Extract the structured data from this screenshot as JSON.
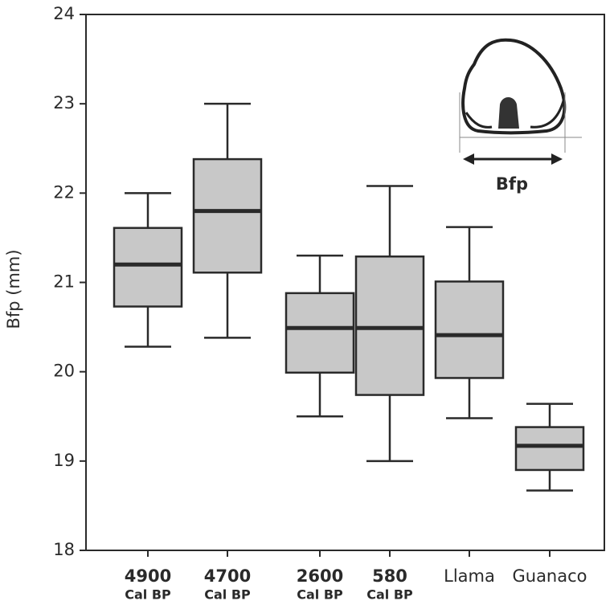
{
  "chart_data": {
    "type": "box",
    "y_label": "Bfp (mm)",
    "annotation": "Bfp",
    "categories": [
      [
        "4900",
        "Cal BP"
      ],
      [
        "4700",
        "Cal BP"
      ],
      [
        "2600",
        "Cal BP"
      ],
      [
        "580",
        "Cal BP"
      ],
      [
        "Llama"
      ],
      [
        "Guanaco"
      ]
    ],
    "boxes": [
      {
        "whislo": 20.28,
        "q1": 20.73,
        "med": 21.2,
        "q3": 21.61,
        "whishi": 22.0
      },
      {
        "whislo": 20.38,
        "q1": 21.11,
        "med": 21.8,
        "q3": 22.38,
        "whishi": 23.0
      },
      {
        "whislo": 19.5,
        "q1": 19.99,
        "med": 20.49,
        "q3": 20.88,
        "whishi": 21.3
      },
      {
        "whislo": 19.0,
        "q1": 19.74,
        "med": 20.49,
        "q3": 21.29,
        "whishi": 22.08
      },
      {
        "whislo": 19.48,
        "q1": 19.93,
        "med": 20.41,
        "q3": 21.01,
        "whishi": 21.62
      },
      {
        "whislo": 18.67,
        "q1": 18.9,
        "med": 19.17,
        "q3": 19.38,
        "whishi": 19.64
      }
    ],
    "color": "#c8c8c8",
    "ylim": [
      18,
      24
    ],
    "yticks": [
      18,
      19,
      20,
      21,
      22,
      23,
      24
    ]
  }
}
